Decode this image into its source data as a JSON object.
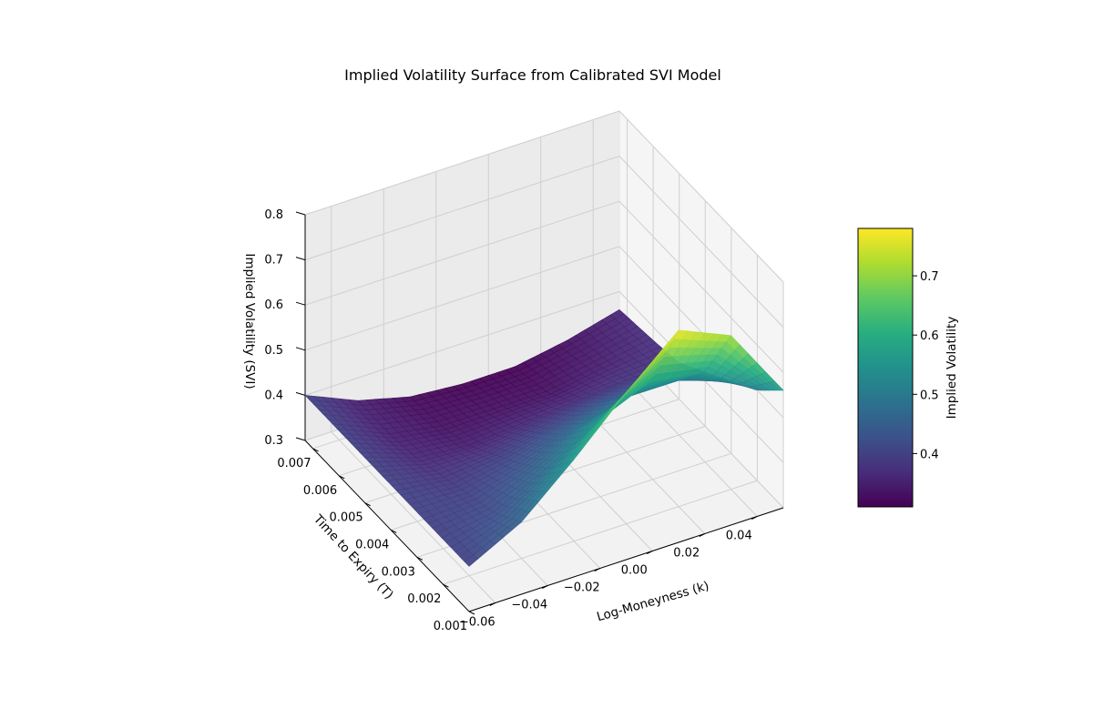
{
  "chart_data": {
    "type": "surface3d",
    "title": "Implied Volatility Surface from Calibrated SVI Model",
    "xlabel": "Log-Moneyness (k)",
    "ylabel": "Time to Expiry (T)",
    "zlabel": "Implied Volatility (SVI)",
    "xlim": [
      -0.07,
      0.05
    ],
    "ylim": [
      0.001,
      0.0073
    ],
    "zlim": [
      0.3,
      0.8
    ],
    "x_ticks": [
      -0.06,
      -0.04,
      -0.02,
      0.0,
      0.02,
      0.04
    ],
    "x_tick_labels": [
      "−0.06",
      "−0.04",
      "−0.02",
      "0.00",
      "0.02",
      "0.04"
    ],
    "y_ticks": [
      0.001,
      0.002,
      0.003,
      0.004,
      0.005,
      0.006,
      0.007
    ],
    "y_tick_labels": [
      "0.001",
      "0.002",
      "0.003",
      "0.004",
      "0.005",
      "0.006",
      "0.007"
    ],
    "z_ticks": [
      0.3,
      0.4,
      0.5,
      0.6,
      0.7,
      0.8
    ],
    "z_tick_labels": [
      "0.3",
      "0.4",
      "0.5",
      "0.6",
      "0.7",
      "0.8"
    ],
    "colormap": "viridis",
    "grid": true,
    "surface": {
      "k": [
        -0.07,
        -0.05,
        -0.03,
        -0.01,
        0.01,
        0.03,
        0.05
      ],
      "T": [
        0.001,
        0.002,
        0.003,
        0.004,
        0.005,
        0.006,
        0.0073
      ],
      "iv": [
        [
          0.4,
          0.46,
          0.56,
          0.67,
          0.77,
          0.72,
          0.56
        ],
        [
          0.4,
          0.42,
          0.48,
          0.55,
          0.6,
          0.58,
          0.5
        ],
        [
          0.4,
          0.4,
          0.43,
          0.47,
          0.5,
          0.5,
          0.46
        ],
        [
          0.4,
          0.38,
          0.39,
          0.41,
          0.43,
          0.44,
          0.42
        ],
        [
          0.4,
          0.36,
          0.35,
          0.36,
          0.37,
          0.38,
          0.38
        ],
        [
          0.4,
          0.35,
          0.33,
          0.33,
          0.33,
          0.35,
          0.37
        ],
        [
          0.4,
          0.35,
          0.32,
          0.31,
          0.31,
          0.33,
          0.36
        ]
      ]
    },
    "colorbar": {
      "label": "Implied Volatility",
      "range": [
        0.31,
        0.78
      ],
      "ticks": [
        0.4,
        0.5,
        0.6,
        0.7
      ],
      "tick_labels": [
        "0.4",
        "0.5",
        "0.6",
        "0.7"
      ]
    }
  }
}
